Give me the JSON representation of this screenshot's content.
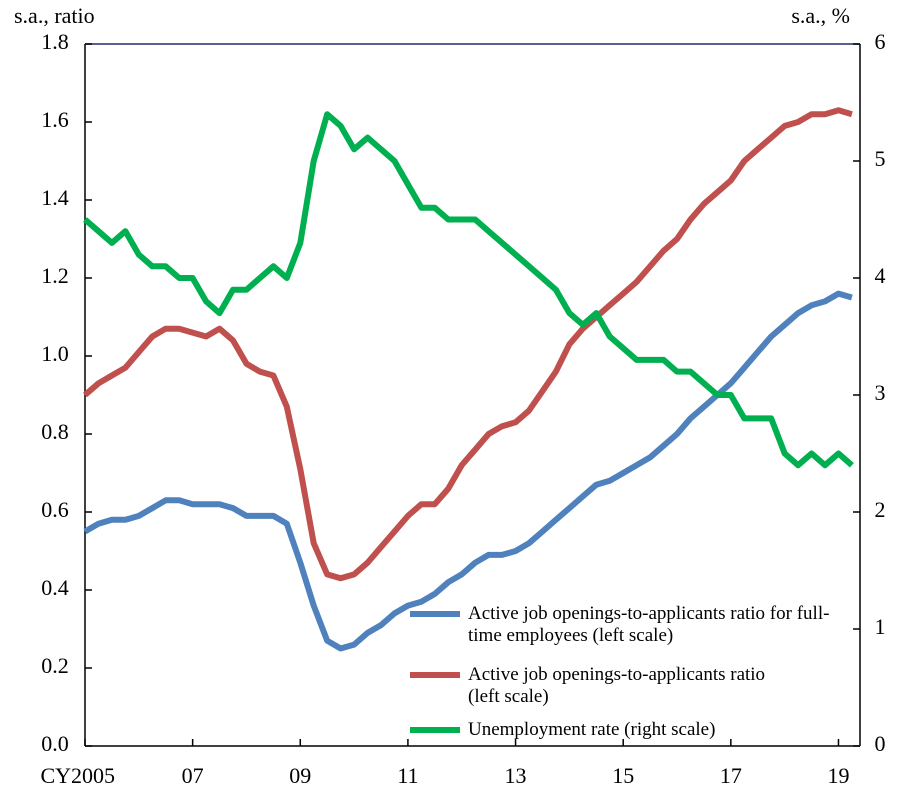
{
  "chart_data": {
    "type": "line",
    "y_axis_label": "s.a., ratio",
    "y2_axis_label": "s.a., %",
    "x": [
      2005,
      2005.25,
      2005.5,
      2005.75,
      2006,
      2006.25,
      2006.5,
      2006.75,
      2007,
      2007.25,
      2007.5,
      2007.75,
      2008,
      2008.25,
      2008.5,
      2008.75,
      2009,
      2009.25,
      2009.5,
      2009.75,
      2010,
      2010.25,
      2010.5,
      2010.75,
      2011,
      2011.25,
      2011.5,
      2011.75,
      2012,
      2012.25,
      2012.5,
      2012.75,
      2013,
      2013.25,
      2013.5,
      2013.75,
      2014,
      2014.25,
      2014.5,
      2014.75,
      2015,
      2015.25,
      2015.5,
      2015.75,
      2016,
      2016.25,
      2016.5,
      2016.75,
      2017,
      2017.25,
      2017.5,
      2017.75,
      2018,
      2018.25,
      2018.5,
      2018.75,
      2019,
      2019.25
    ],
    "series": [
      {
        "name": "Active job openings-to-applicants ratio for full-time employees (left scale)",
        "color": "#4f81bd",
        "axis": "y",
        "values": [
          0.55,
          0.57,
          0.58,
          0.58,
          0.59,
          0.61,
          0.63,
          0.63,
          0.62,
          0.62,
          0.62,
          0.61,
          0.59,
          0.59,
          0.59,
          0.57,
          0.47,
          0.36,
          0.27,
          0.25,
          0.26,
          0.29,
          0.31,
          0.34,
          0.36,
          0.37,
          0.39,
          0.42,
          0.44,
          0.47,
          0.49,
          0.49,
          0.5,
          0.52,
          0.55,
          0.58,
          0.61,
          0.64,
          0.67,
          0.68,
          0.7,
          0.72,
          0.74,
          0.77,
          0.8,
          0.84,
          0.87,
          0.9,
          0.93,
          0.97,
          1.01,
          1.05,
          1.08,
          1.11,
          1.13,
          1.14,
          1.16,
          1.15
        ]
      },
      {
        "name": "Active job openings-to-applicants ratio (left scale)",
        "color": "#c0504d",
        "axis": "y",
        "values": [
          0.9,
          0.93,
          0.95,
          0.97,
          1.01,
          1.05,
          1.07,
          1.07,
          1.06,
          1.05,
          1.07,
          1.04,
          0.98,
          0.96,
          0.95,
          0.87,
          0.71,
          0.52,
          0.44,
          0.43,
          0.44,
          0.47,
          0.51,
          0.55,
          0.59,
          0.62,
          0.62,
          0.66,
          0.72,
          0.76,
          0.8,
          0.82,
          0.83,
          0.86,
          0.91,
          0.96,
          1.03,
          1.07,
          1.1,
          1.13,
          1.16,
          1.19,
          1.23,
          1.27,
          1.3,
          1.35,
          1.39,
          1.42,
          1.45,
          1.5,
          1.53,
          1.56,
          1.59,
          1.6,
          1.62,
          1.62,
          1.63,
          1.62
        ]
      },
      {
        "name": "Unemployment rate (right scale)",
        "color": "#00b050",
        "axis": "y2",
        "values": [
          4.5,
          4.4,
          4.3,
          4.4,
          4.2,
          4.1,
          4.1,
          4.0,
          4.0,
          3.8,
          3.7,
          3.9,
          3.9,
          4.0,
          4.1,
          4.0,
          4.3,
          5.0,
          5.4,
          5.3,
          5.1,
          5.2,
          5.1,
          5.0,
          4.8,
          4.6,
          4.6,
          4.5,
          4.5,
          4.5,
          4.4,
          4.3,
          4.2,
          4.1,
          4.0,
          3.9,
          3.7,
          3.6,
          3.7,
          3.5,
          3.4,
          3.3,
          3.3,
          3.3,
          3.2,
          3.2,
          3.1,
          3.0,
          3.0,
          2.8,
          2.8,
          2.8,
          2.5,
          2.4,
          2.5,
          2.4,
          2.5,
          2.4
        ]
      }
    ],
    "xlim": [
      2005,
      2019.4
    ],
    "xticks": [
      {
        "value": 2005,
        "label": "CY2005"
      },
      {
        "value": 2007,
        "label": "07"
      },
      {
        "value": 2009,
        "label": "09"
      },
      {
        "value": 2011,
        "label": "11"
      },
      {
        "value": 2013,
        "label": "13"
      },
      {
        "value": 2015,
        "label": "15"
      },
      {
        "value": 2017,
        "label": "17"
      },
      {
        "value": 2019,
        "label": "19"
      }
    ],
    "ylim": [
      0,
      1.8
    ],
    "yticks": [
      {
        "value": 0,
        "label": "0.0"
      },
      0.2,
      0.4,
      0.6,
      0.8,
      {
        "value": 1,
        "label": "1.0"
      },
      1.2,
      1.4,
      1.6,
      1.8
    ],
    "y2lim": [
      0,
      6
    ],
    "y2ticks": [
      0,
      1,
      2,
      3,
      4,
      5,
      6
    ],
    "grid": false,
    "legend": "lower right"
  }
}
